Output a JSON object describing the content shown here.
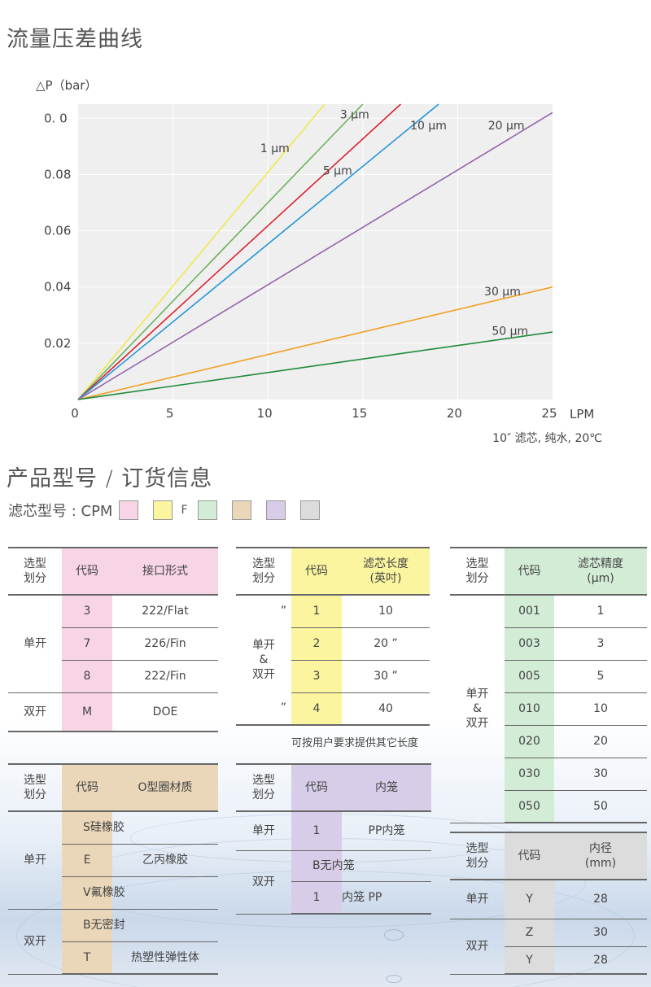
{
  "section1": {
    "title": "流量压差曲线"
  },
  "chart_data": {
    "type": "line",
    "ylabel": "△P（bar）",
    "xlabel": "LPM",
    "caption": "10″ 滤芯, 纯水, 20℃",
    "xlim": [
      0,
      25
    ],
    "ylim": [
      0,
      0.105
    ],
    "x_ticks": [
      "0",
      "5",
      "10",
      "15",
      "20",
      "25"
    ],
    "y_ticks": [
      {
        "value": 0.02,
        "label": "0.02"
      },
      {
        "value": 0.04,
        "label": "0.04"
      },
      {
        "value": 0.06,
        "label": "0.06"
      },
      {
        "value": 0.08,
        "label": "0.08"
      },
      {
        "value": 0.1,
        "label": "0. 0"
      }
    ],
    "series": [
      {
        "name": "1 µm",
        "label": "1 μm",
        "color": "#f2e84a",
        "x": [
          0,
          13
        ],
        "y": [
          0,
          0.105
        ]
      },
      {
        "name": "3 µm",
        "label": "3 μm",
        "color": "#6bb35a",
        "x": [
          0,
          15
        ],
        "y": [
          0,
          0.105
        ]
      },
      {
        "name": "5 µm",
        "label": "5 μm",
        "color": "#d9232f",
        "x": [
          0,
          17
        ],
        "y": [
          0,
          0.105
        ]
      },
      {
        "name": "10 µm",
        "label": "10 μm",
        "color": "#2596d6",
        "x": [
          0,
          19
        ],
        "y": [
          0,
          0.105
        ]
      },
      {
        "name": "20 µm",
        "label": "20 μm",
        "color": "#9265aa",
        "x": [
          0,
          25
        ],
        "y": [
          0,
          0.102
        ]
      },
      {
        "name": "30 µm",
        "label": "30 μm",
        "color": "#f0a020",
        "x": [
          0,
          25
        ],
        "y": [
          0,
          0.04
        ]
      },
      {
        "name": "50 µm",
        "label": "50 μm",
        "color": "#1f8a3a",
        "x": [
          0,
          25
        ],
        "y": [
          0,
          0.024
        ]
      }
    ]
  },
  "section2": {
    "title": "产品型号 / 订货信息"
  },
  "model_legend": {
    "label": "滤芯型号 : CPM",
    "letter_f": "F",
    "colors": [
      "#f7d4e6",
      "#fbf5a0",
      "#d3ecd6",
      "#ead6b8",
      "#d7cde9",
      "#dcdcdc"
    ]
  },
  "table_connection": {
    "head_bg": "#f7d4e6",
    "headers": [
      "选型\n划分",
      "代码",
      "接口形式"
    ],
    "rows": [
      {
        "group": "单开",
        "code": "3",
        "value": "222/Flat"
      },
      {
        "group": "",
        "code": "7",
        "value": "226/Fin"
      },
      {
        "group": "",
        "code": "8",
        "value": "222/Fin"
      },
      {
        "group": "双开",
        "code": "M",
        "value": "DOE"
      }
    ]
  },
  "table_length": {
    "head_bg": "#fbf5a0",
    "headers": [
      "选型\n划分",
      "代码",
      "滤芯长度\n(英吋)"
    ],
    "group": "单开\n&\n双开",
    "rows": [
      {
        "mark": "”",
        "code": "1",
        "value": "10"
      },
      {
        "mark": "",
        "code": "2",
        "value": "20 ”"
      },
      {
        "mark": "",
        "code": "3",
        "value": "30 ”"
      },
      {
        "mark": "”",
        "code": "4",
        "value": "40"
      }
    ],
    "note": "可按用户要求提供其它长度"
  },
  "table_precision": {
    "head_bg": "#d3ecd6",
    "headers": [
      "选型\n划分",
      "代码",
      "滤芯精度\n(μm)"
    ],
    "group": "单开\n&\n双开",
    "rows": [
      {
        "code": "001",
        "value": "1"
      },
      {
        "code": "003",
        "value": "3"
      },
      {
        "code": "005",
        "value": "5"
      },
      {
        "code": "010",
        "value": "10"
      },
      {
        "code": "020",
        "value": "20"
      },
      {
        "code": "030",
        "value": "30"
      },
      {
        "code": "050",
        "value": "50"
      }
    ]
  },
  "table_oring": {
    "head_bg": "#ead6b8",
    "headers": [
      "选型\n划分",
      "代码",
      "O型圈材质"
    ],
    "rows": [
      {
        "group": "单开",
        "text": "S硅橡胶"
      },
      {
        "code": "E",
        "value": "乙丙橡胶"
      },
      {
        "text": "V氟橡胶"
      },
      {
        "group": "双开",
        "text": "B无密封"
      },
      {
        "code": "T",
        "value": "热塑性弹性体"
      }
    ]
  },
  "table_cage": {
    "head_bg": "#d7cde9",
    "headers": [
      "选型\n划分",
      "代码",
      "内笼"
    ],
    "rows": [
      {
        "group": "单开",
        "code": "1",
        "value": "PP内笼"
      },
      {
        "group": "双开",
        "text": "B无内笼"
      },
      {
        "code": "1",
        "value": "内笼 PP"
      }
    ]
  },
  "table_diameter": {
    "head_bg": "#dcdcdc",
    "headers": [
      "选型\n划分",
      "代码",
      "内径\n(mm)"
    ],
    "rows": [
      {
        "group": "单开",
        "code": "Y",
        "value": "28"
      },
      {
        "group": "双开",
        "code": "Z",
        "value": "30"
      },
      {
        "code": "Y",
        "value": "28"
      }
    ]
  }
}
